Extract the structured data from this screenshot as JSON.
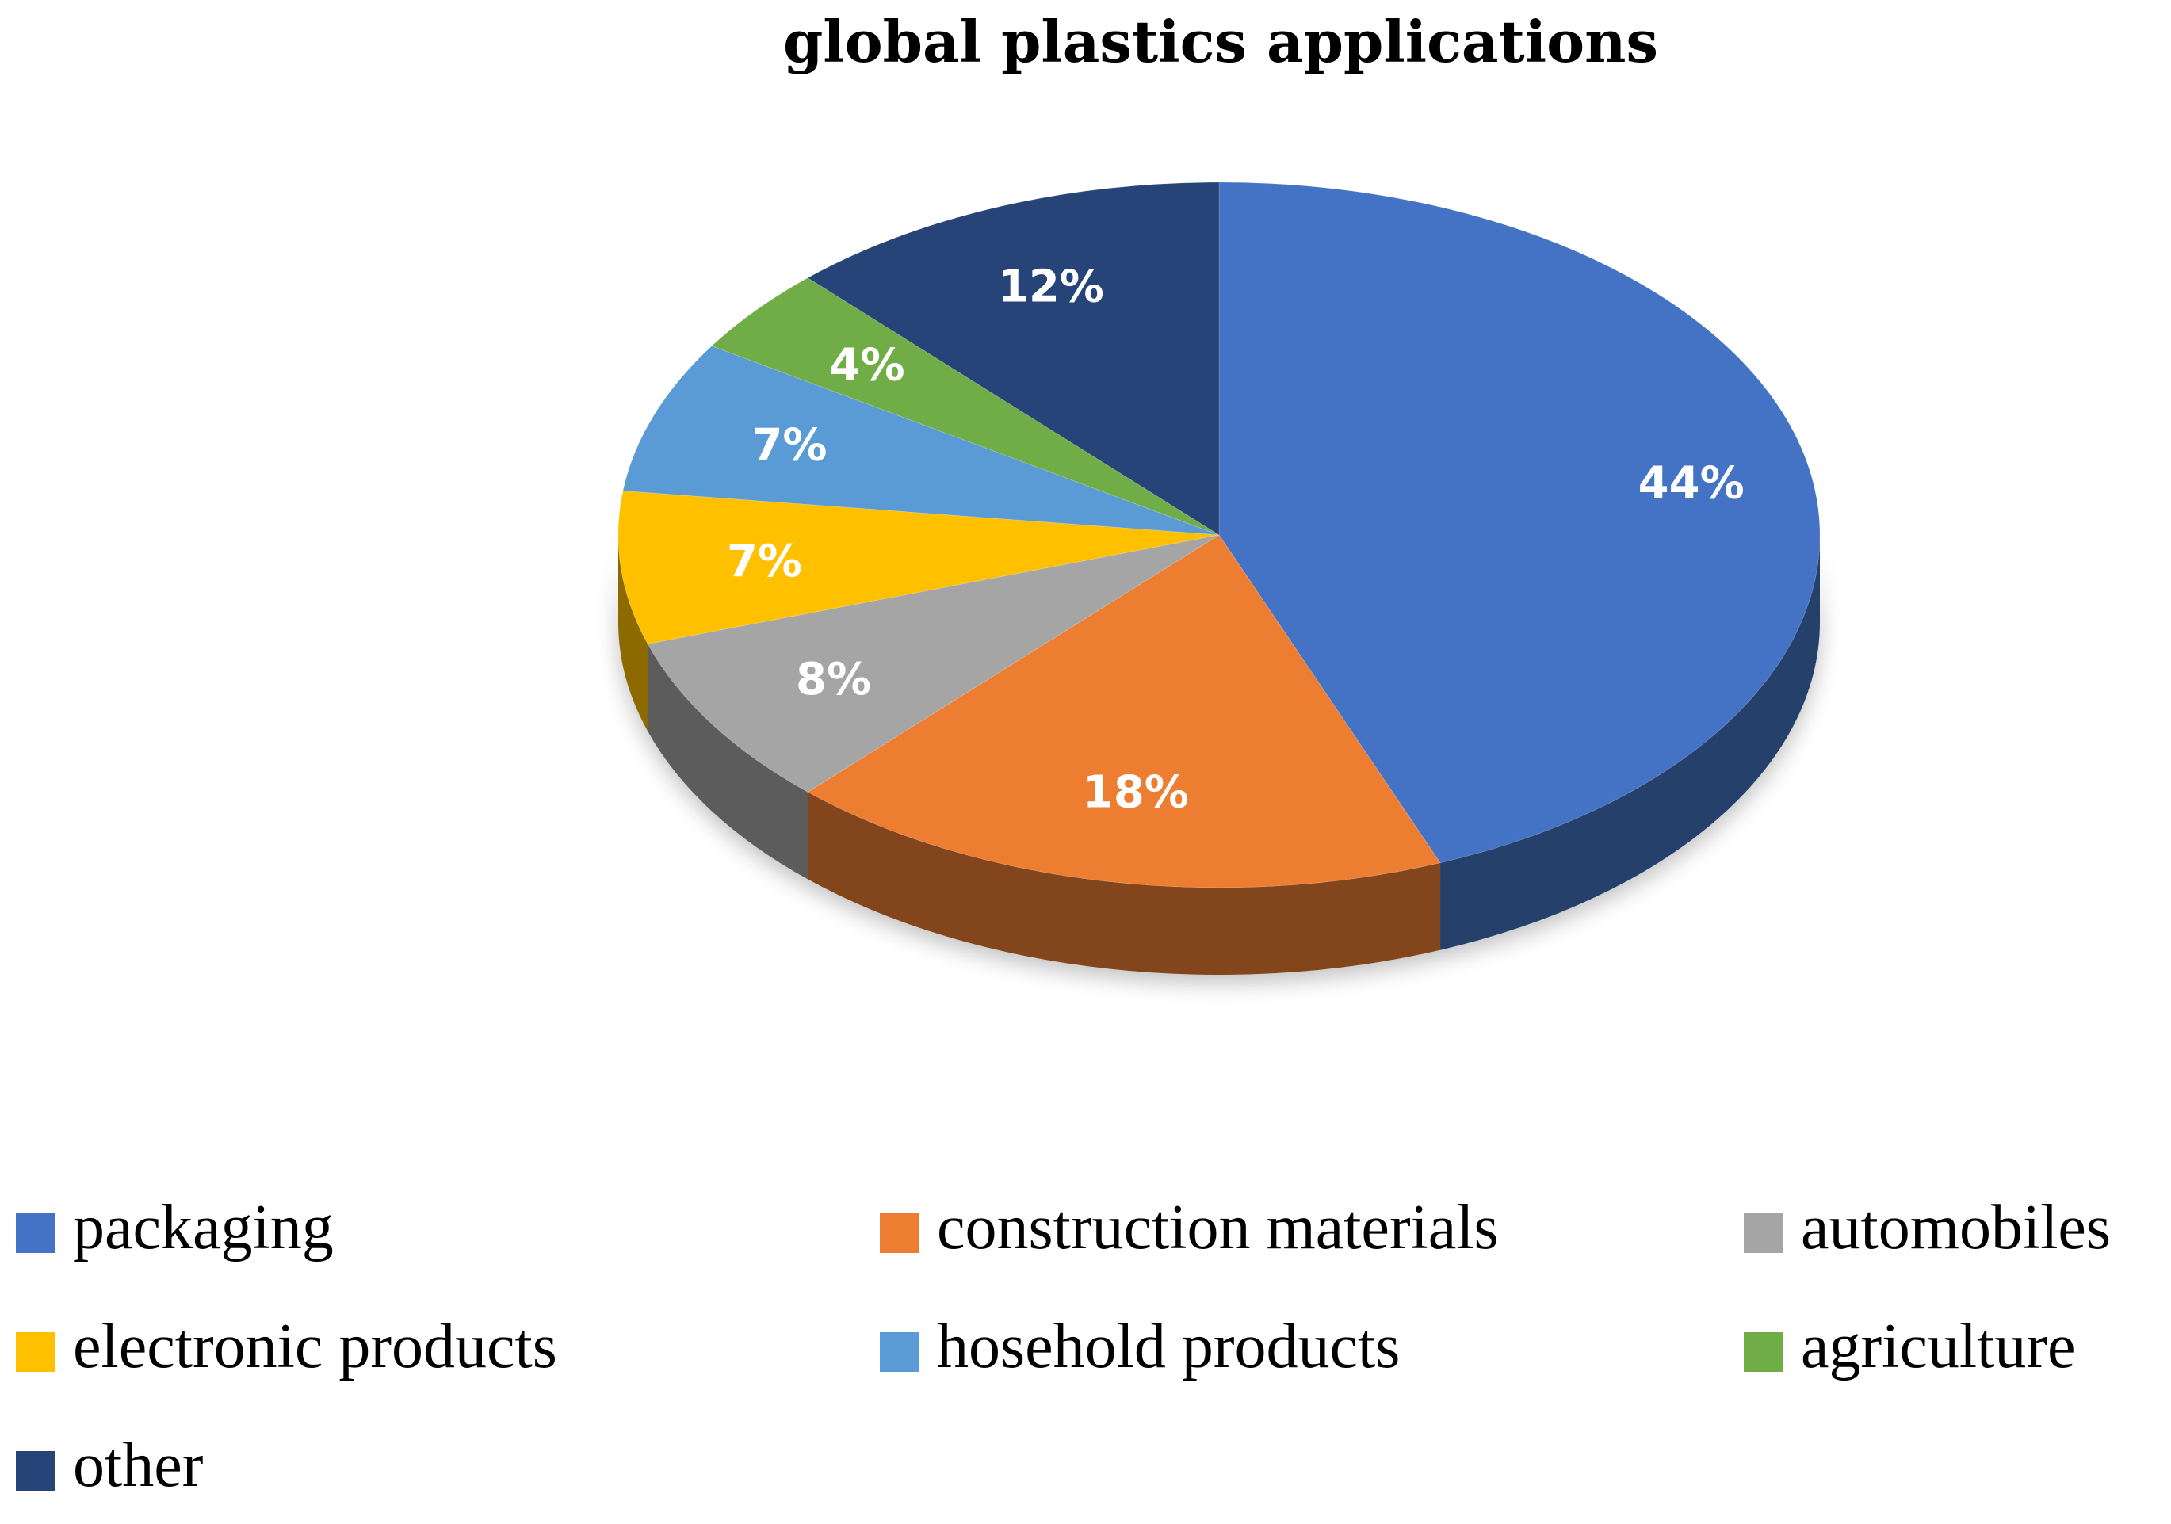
{
  "chart_data": {
    "type": "pie",
    "title": "global plastics applications",
    "categories": [
      "packaging",
      "construction materials",
      "automobiles",
      "electronic products",
      "hosehold products",
      "agriculture",
      "other"
    ],
    "values": [
      44,
      18,
      8,
      7,
      7,
      4,
      12
    ],
    "data_labels": [
      "44%",
      "18%",
      "8%",
      "7%",
      "7%",
      "4%",
      "12%"
    ],
    "colors": [
      "#4472C4",
      "#ED7D31",
      "#A5A5A5",
      "#FFC000",
      "#5B9BD5",
      "#70AD47",
      "#264478"
    ],
    "style": "3d",
    "legend": "bottom"
  }
}
